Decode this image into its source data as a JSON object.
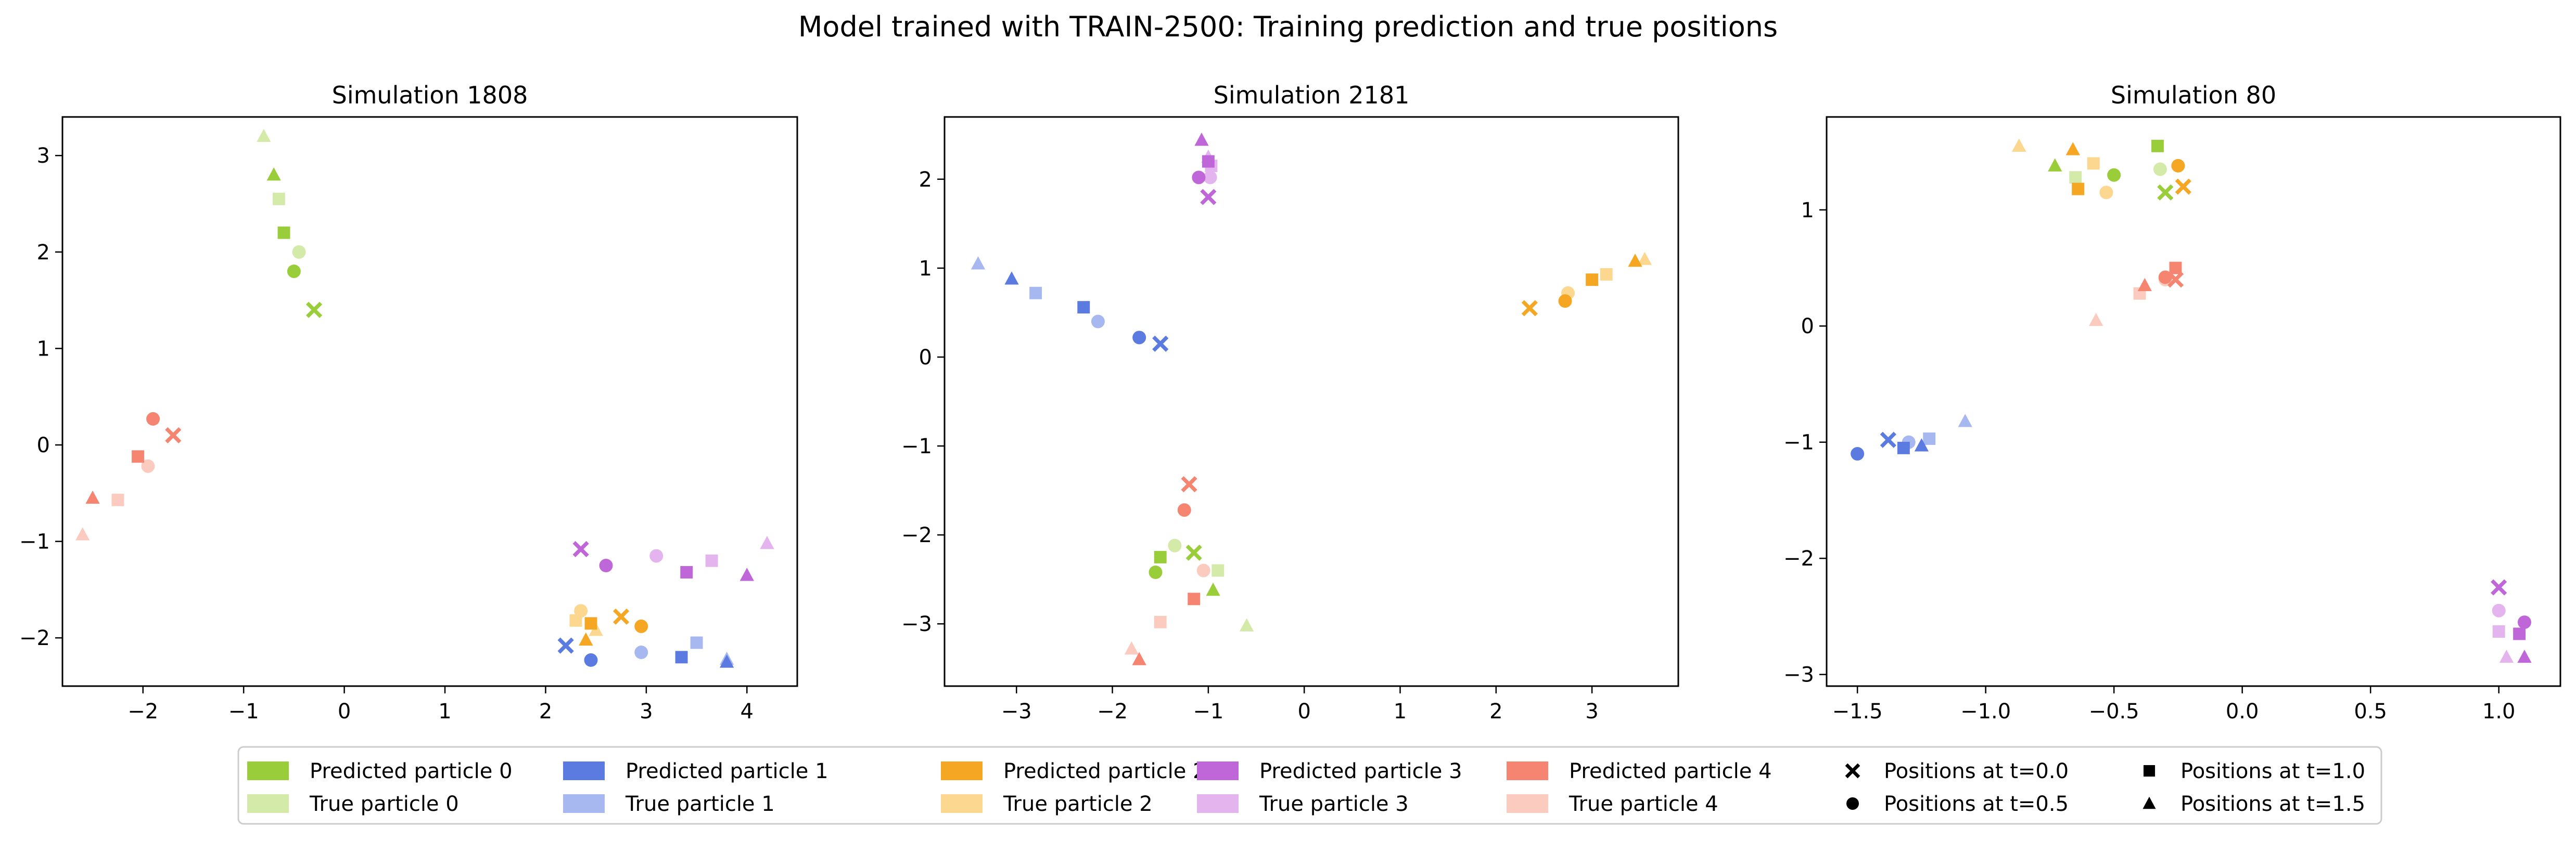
{
  "figure": {
    "suptitle": "Model trained with TRAIN-2500: Training prediction and true positions"
  },
  "colors": {
    "pred": [
      "#9ACD3A",
      "#5B7BE0",
      "#F5A623",
      "#BF66D9",
      "#F58470"
    ],
    "true": [
      "#D3EAA8",
      "#A7B8F0",
      "#FCD78F",
      "#E3B4EE",
      "#FCCBC0"
    ]
  },
  "legend": {
    "particles": [
      {
        "pred": "Predicted particle 0",
        "true": "True particle 0"
      },
      {
        "pred": "Predicted particle 1",
        "true": "True particle 1"
      },
      {
        "pred": "Predicted particle 2",
        "true": "True particle 2"
      },
      {
        "pred": "Predicted particle 3",
        "true": "True particle 3"
      },
      {
        "pred": "Predicted particle 4",
        "true": "True particle 4"
      }
    ],
    "times": [
      {
        "marker": "x-icon",
        "label": "Positions at t=0.0"
      },
      {
        "marker": "circle-icon",
        "label": "Positions at t=0.5"
      },
      {
        "marker": "square-icon",
        "label": "Positions at t=1.0"
      },
      {
        "marker": "triangle-icon",
        "label": "Positions at t=1.5"
      }
    ]
  },
  "chart_data": [
    {
      "type": "scatter",
      "title": "Simulation 1808",
      "xlim": [
        -2.8,
        4.5
      ],
      "ylim": [
        -2.5,
        3.4
      ],
      "xticks": [
        -2,
        -1,
        0,
        1,
        2,
        3,
        4
      ],
      "yticks": [
        -2,
        -1,
        0,
        1,
        2,
        3
      ],
      "particles": [
        {
          "pred": [
            [
              -0.3,
              1.4
            ],
            [
              -0.5,
              1.8
            ],
            [
              -0.6,
              2.2
            ],
            [
              -0.7,
              2.8
            ]
          ],
          "true": [
            [
              -0.3,
              1.4
            ],
            [
              -0.45,
              2.0
            ],
            [
              -0.65,
              2.55
            ],
            [
              -0.8,
              3.2
            ]
          ]
        },
        {
          "pred": [
            [
              2.2,
              -2.08
            ],
            [
              2.45,
              -2.23
            ],
            [
              3.35,
              -2.2
            ],
            [
              3.8,
              -2.25
            ]
          ],
          "true": [
            [
              2.2,
              -2.08
            ],
            [
              2.95,
              -2.15
            ],
            [
              3.5,
              -2.05
            ],
            [
              3.8,
              -2.22
            ]
          ]
        },
        {
          "pred": [
            [
              2.75,
              -1.78
            ],
            [
              2.95,
              -1.88
            ],
            [
              2.45,
              -1.85
            ],
            [
              2.4,
              -2.02
            ]
          ],
          "true": [
            [
              2.75,
              -1.78
            ],
            [
              2.35,
              -1.72
            ],
            [
              2.3,
              -1.82
            ],
            [
              2.5,
              -1.92
            ]
          ]
        },
        {
          "pred": [
            [
              2.35,
              -1.08
            ],
            [
              2.6,
              -1.25
            ],
            [
              3.4,
              -1.32
            ],
            [
              4.0,
              -1.35
            ]
          ],
          "true": [
            [
              2.35,
              -1.08
            ],
            [
              3.1,
              -1.15
            ],
            [
              3.65,
              -1.2
            ],
            [
              4.2,
              -1.02
            ]
          ]
        },
        {
          "pred": [
            [
              -1.7,
              0.1
            ],
            [
              -1.9,
              0.27
            ],
            [
              -2.05,
              -0.12
            ],
            [
              -2.5,
              -0.55
            ]
          ],
          "true": [
            [
              -1.7,
              0.1
            ],
            [
              -1.95,
              -0.22
            ],
            [
              -2.25,
              -0.57
            ],
            [
              -2.6,
              -0.93
            ]
          ]
        }
      ]
    },
    {
      "type": "scatter",
      "title": "Simulation 2181",
      "xlim": [
        -3.75,
        3.9
      ],
      "ylim": [
        -3.7,
        2.7
      ],
      "xticks": [
        -3,
        -2,
        -1,
        0,
        1,
        2,
        3
      ],
      "yticks": [
        -3,
        -2,
        -1,
        0,
        1,
        2
      ],
      "particles": [
        {
          "pred": [
            [
              -1.15,
              -2.2
            ],
            [
              -1.55,
              -2.42
            ],
            [
              -1.5,
              -2.25
            ],
            [
              -0.95,
              -2.62
            ]
          ],
          "true": [
            [
              -1.15,
              -2.2
            ],
            [
              -1.35,
              -2.12
            ],
            [
              -0.9,
              -2.4
            ],
            [
              -0.6,
              -3.02
            ]
          ]
        },
        {
          "pred": [
            [
              -1.5,
              0.15
            ],
            [
              -1.72,
              0.22
            ],
            [
              -2.3,
              0.56
            ],
            [
              -3.05,
              0.88
            ]
          ],
          "true": [
            [
              -1.5,
              0.15
            ],
            [
              -2.15,
              0.4
            ],
            [
              -2.8,
              0.72
            ],
            [
              -3.4,
              1.05
            ]
          ]
        },
        {
          "pred": [
            [
              2.35,
              0.55
            ],
            [
              2.72,
              0.63
            ],
            [
              3.0,
              0.87
            ],
            [
              3.45,
              1.08
            ]
          ],
          "true": [
            [
              2.35,
              0.55
            ],
            [
              2.75,
              0.72
            ],
            [
              3.15,
              0.93
            ],
            [
              3.55,
              1.1
            ]
          ]
        },
        {
          "pred": [
            [
              -1.0,
              1.8
            ],
            [
              -1.1,
              2.02
            ],
            [
              -1.0,
              2.2
            ],
            [
              -1.07,
              2.44
            ]
          ],
          "true": [
            [
              -1.0,
              1.8
            ],
            [
              -0.98,
              2.02
            ],
            [
              -0.97,
              2.15
            ],
            [
              -1.0,
              2.25
            ]
          ]
        },
        {
          "pred": [
            [
              -1.2,
              -1.43
            ],
            [
              -1.25,
              -1.72
            ],
            [
              -1.15,
              -2.72
            ],
            [
              -1.72,
              -3.4
            ]
          ],
          "true": [
            [
              -1.2,
              -1.43
            ],
            [
              -1.05,
              -2.4
            ],
            [
              -1.5,
              -2.98
            ],
            [
              -1.8,
              -3.28
            ]
          ]
        }
      ]
    },
    {
      "type": "scatter",
      "title": "Simulation 80",
      "xlim": [
        -1.62,
        1.24
      ],
      "ylim": [
        -3.1,
        1.8
      ],
      "xticks": [
        -1.5,
        -1.0,
        -0.5,
        0.0,
        0.5,
        1.0
      ],
      "yticks": [
        -3,
        -2,
        -1,
        0,
        1
      ],
      "particles": [
        {
          "pred": [
            [
              -0.3,
              1.15
            ],
            [
              -0.5,
              1.3
            ],
            [
              -0.33,
              1.55
            ],
            [
              -0.73,
              1.38
            ]
          ],
          "true": [
            [
              -0.3,
              1.15
            ],
            [
              -0.32,
              1.35
            ],
            [
              -0.65,
              1.28
            ],
            [
              -0.87,
              1.55
            ]
          ]
        },
        {
          "pred": [
            [
              -1.38,
              -0.98
            ],
            [
              -1.5,
              -1.1
            ],
            [
              -1.32,
              -1.05
            ],
            [
              -1.25,
              -1.03
            ]
          ],
          "true": [
            [
              -1.38,
              -0.98
            ],
            [
              -1.3,
              -1.0
            ],
            [
              -1.22,
              -0.97
            ],
            [
              -1.08,
              -0.82
            ]
          ]
        },
        {
          "pred": [
            [
              -0.23,
              1.2
            ],
            [
              -0.25,
              1.38
            ],
            [
              -0.64,
              1.18
            ],
            [
              -0.66,
              1.52
            ]
          ],
          "true": [
            [
              -0.23,
              1.2
            ],
            [
              -0.53,
              1.15
            ],
            [
              -0.58,
              1.4
            ],
            [
              -0.87,
              1.55
            ]
          ]
        },
        {
          "pred": [
            [
              1.0,
              -2.25
            ],
            [
              1.1,
              -2.55
            ],
            [
              1.08,
              -2.65
            ],
            [
              1.1,
              -2.85
            ]
          ],
          "true": [
            [
              1.0,
              -2.25
            ],
            [
              1.0,
              -2.45
            ],
            [
              1.0,
              -2.63
            ],
            [
              1.03,
              -2.85
            ]
          ]
        },
        {
          "pred": [
            [
              -0.26,
              0.4
            ],
            [
              -0.3,
              0.42
            ],
            [
              -0.26,
              0.5
            ],
            [
              -0.38,
              0.35
            ]
          ],
          "true": [
            [
              -0.26,
              0.4
            ],
            [
              -0.3,
              0.4
            ],
            [
              -0.4,
              0.28
            ],
            [
              -0.57,
              0.05
            ]
          ]
        }
      ]
    }
  ]
}
